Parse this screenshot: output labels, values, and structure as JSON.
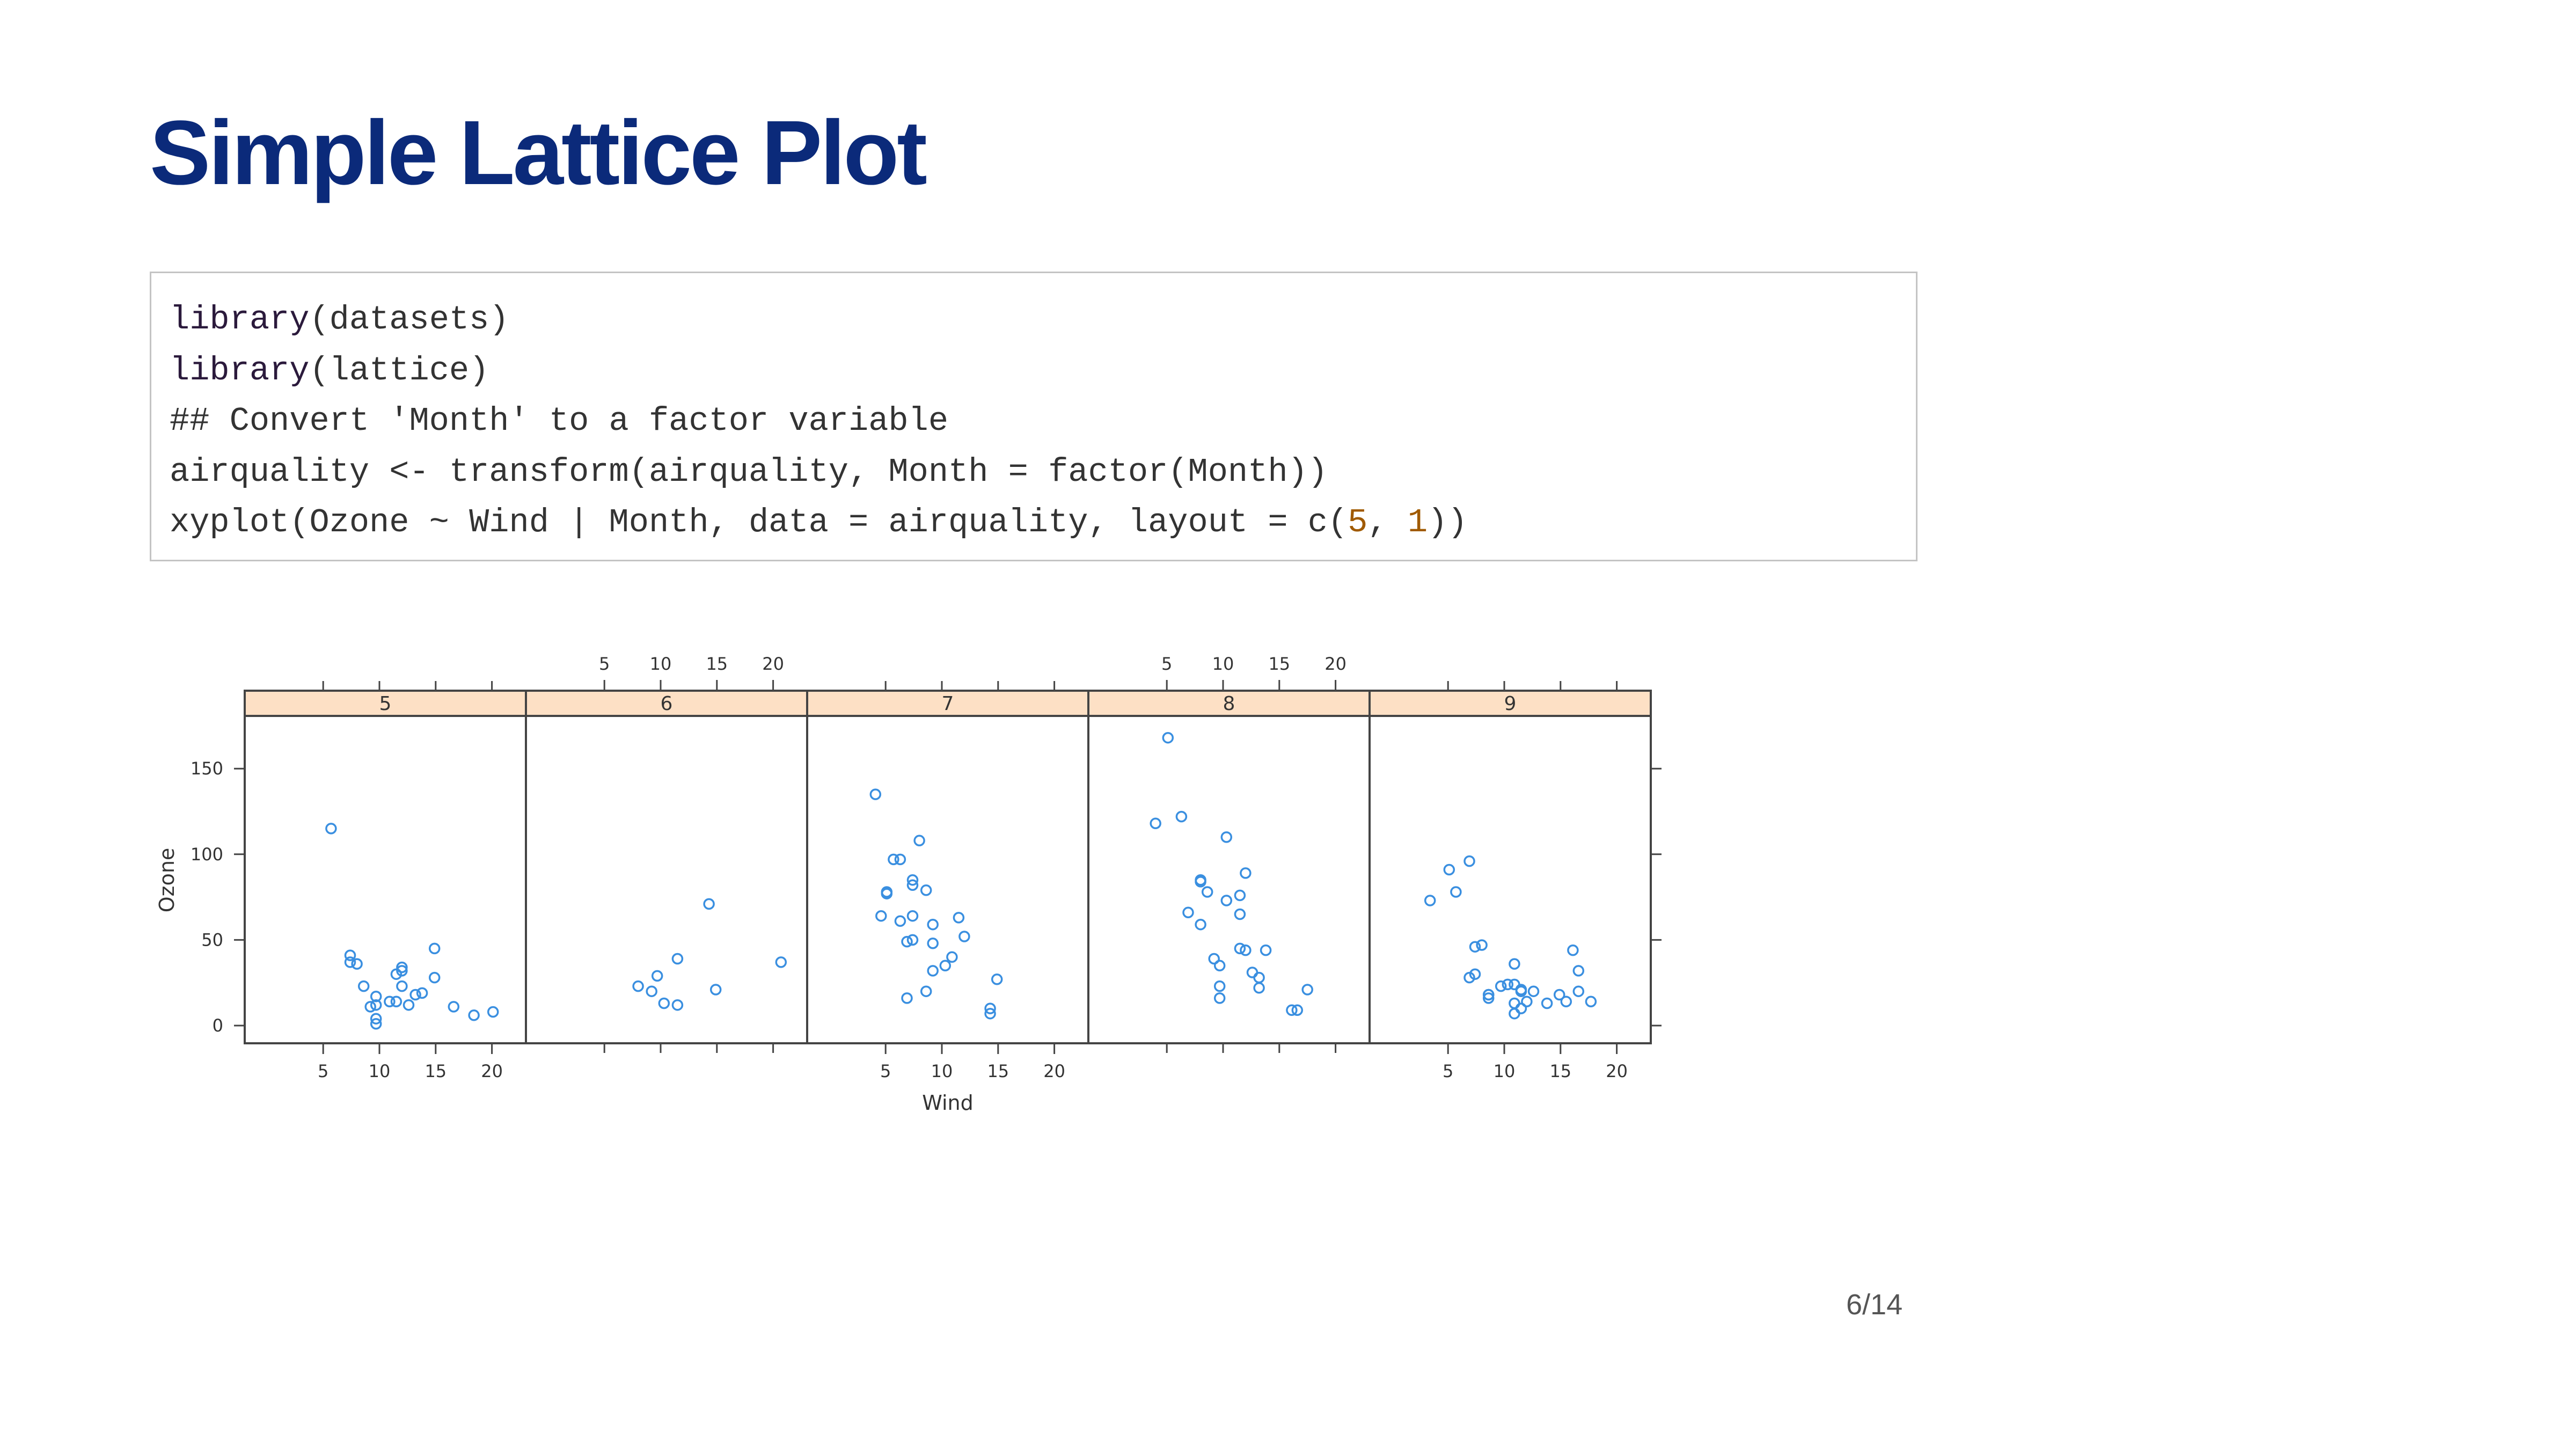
{
  "slide": {
    "title": "Simple Lattice Plot",
    "page_number": "6/14"
  },
  "code": {
    "lines": [
      [
        {
          "t": "library",
          "c": "kw"
        },
        {
          "t": "(datasets)"
        }
      ],
      [
        {
          "t": "library",
          "c": "kw"
        },
        {
          "t": "(lattice)"
        }
      ],
      [
        {
          "t": "## Convert 'Month' to a factor variable"
        }
      ],
      [
        {
          "t": "airquality <- transform(airquality, Month = factor(Month))"
        }
      ],
      [
        {
          "t": "xyplot(Ozone ~ Wind | Month, data = airquality, layout = c("
        },
        {
          "t": "5",
          "c": "num"
        },
        {
          "t": ", "
        },
        {
          "t": "1",
          "c": "num"
        },
        {
          "t": "))"
        }
      ]
    ]
  },
  "colors": {
    "title": "#0b2a7a",
    "strip_fill": "#fde0c5",
    "point": "#3a8fe0",
    "panel_border": "#444444",
    "axis_text": "#333333"
  },
  "chart_data": {
    "type": "scatter",
    "xlabel": "Wind",
    "ylabel": "Ozone",
    "xlim": [
      1,
      23
    ],
    "ylim": [
      -10,
      180
    ],
    "x_ticks": [
      5,
      10,
      15,
      20
    ],
    "y_ticks": [
      0,
      50,
      100,
      150
    ],
    "layout": [
      5,
      1
    ],
    "panels": [
      {
        "label": "5",
        "points": [
          [
            5.7,
            115
          ],
          [
            7.4,
            41
          ],
          [
            7.4,
            37
          ],
          [
            8.0,
            36
          ],
          [
            8.6,
            23
          ],
          [
            9.2,
            11
          ],
          [
            9.7,
            12
          ],
          [
            9.7,
            17
          ],
          [
            9.7,
            4
          ],
          [
            9.7,
            1
          ],
          [
            10.9,
            14
          ],
          [
            11.5,
            14
          ],
          [
            11.5,
            30
          ],
          [
            12.0,
            34
          ],
          [
            12.0,
            32
          ],
          [
            12.0,
            23
          ],
          [
            12.6,
            12
          ],
          [
            13.2,
            18
          ],
          [
            13.8,
            19
          ],
          [
            14.9,
            28
          ],
          [
            14.9,
            45
          ],
          [
            16.6,
            11
          ],
          [
            18.4,
            6
          ],
          [
            20.1,
            8
          ]
        ]
      },
      {
        "label": "6",
        "points": [
          [
            8.0,
            23
          ],
          [
            9.2,
            20
          ],
          [
            9.7,
            29
          ],
          [
            10.3,
            13
          ],
          [
            11.5,
            12
          ],
          [
            11.5,
            39
          ],
          [
            14.3,
            71
          ],
          [
            14.9,
            21
          ],
          [
            20.7,
            37
          ]
        ]
      },
      {
        "label": "7",
        "points": [
          [
            4.1,
            135
          ],
          [
            4.6,
            64
          ],
          [
            5.1,
            78
          ],
          [
            5.1,
            77
          ],
          [
            5.7,
            97
          ],
          [
            6.3,
            97
          ],
          [
            6.3,
            61
          ],
          [
            6.9,
            49
          ],
          [
            6.9,
            16
          ],
          [
            7.4,
            50
          ],
          [
            7.4,
            85
          ],
          [
            7.4,
            82
          ],
          [
            7.4,
            64
          ],
          [
            8.0,
            108
          ],
          [
            8.6,
            79
          ],
          [
            8.6,
            20
          ],
          [
            9.2,
            59
          ],
          [
            9.2,
            48
          ],
          [
            9.2,
            32
          ],
          [
            10.3,
            35
          ],
          [
            10.9,
            40
          ],
          [
            11.5,
            63
          ],
          [
            12.0,
            52
          ],
          [
            14.3,
            7
          ],
          [
            14.3,
            10
          ],
          [
            14.9,
            27
          ]
        ]
      },
      {
        "label": "8",
        "points": [
          [
            4.0,
            118
          ],
          [
            5.1,
            168
          ],
          [
            6.3,
            122
          ],
          [
            6.9,
            66
          ],
          [
            8.0,
            59
          ],
          [
            8.0,
            84
          ],
          [
            8.0,
            85
          ],
          [
            8.6,
            78
          ],
          [
            9.2,
            39
          ],
          [
            9.7,
            16
          ],
          [
            9.7,
            23
          ],
          [
            9.7,
            35
          ],
          [
            10.3,
            73
          ],
          [
            10.3,
            110
          ],
          [
            11.5,
            65
          ],
          [
            11.5,
            76
          ],
          [
            11.5,
            45
          ],
          [
            12.0,
            44
          ],
          [
            12.0,
            89
          ],
          [
            12.6,
            31
          ],
          [
            13.2,
            28
          ],
          [
            13.2,
            22
          ],
          [
            13.8,
            44
          ],
          [
            16.1,
            9
          ],
          [
            16.6,
            9
          ],
          [
            17.5,
            21
          ]
        ]
      },
      {
        "label": "9",
        "points": [
          [
            3.4,
            73
          ],
          [
            5.1,
            91
          ],
          [
            5.7,
            78
          ],
          [
            6.9,
            28
          ],
          [
            6.9,
            96
          ],
          [
            7.4,
            30
          ],
          [
            7.4,
            46
          ],
          [
            8.0,
            47
          ],
          [
            8.6,
            18
          ],
          [
            8.6,
            16
          ],
          [
            8.6,
            18
          ],
          [
            9.7,
            23
          ],
          [
            10.3,
            24
          ],
          [
            10.9,
            36
          ],
          [
            10.9,
            24
          ],
          [
            10.9,
            7
          ],
          [
            10.9,
            13
          ],
          [
            11.5,
            21
          ],
          [
            11.5,
            20
          ],
          [
            11.5,
            10
          ],
          [
            12.0,
            14
          ],
          [
            12.6,
            20
          ],
          [
            13.8,
            13
          ],
          [
            14.9,
            18
          ],
          [
            15.5,
            14
          ],
          [
            16.1,
            44
          ],
          [
            16.6,
            20
          ],
          [
            16.6,
            32
          ],
          [
            17.7,
            14
          ]
        ]
      }
    ]
  }
}
